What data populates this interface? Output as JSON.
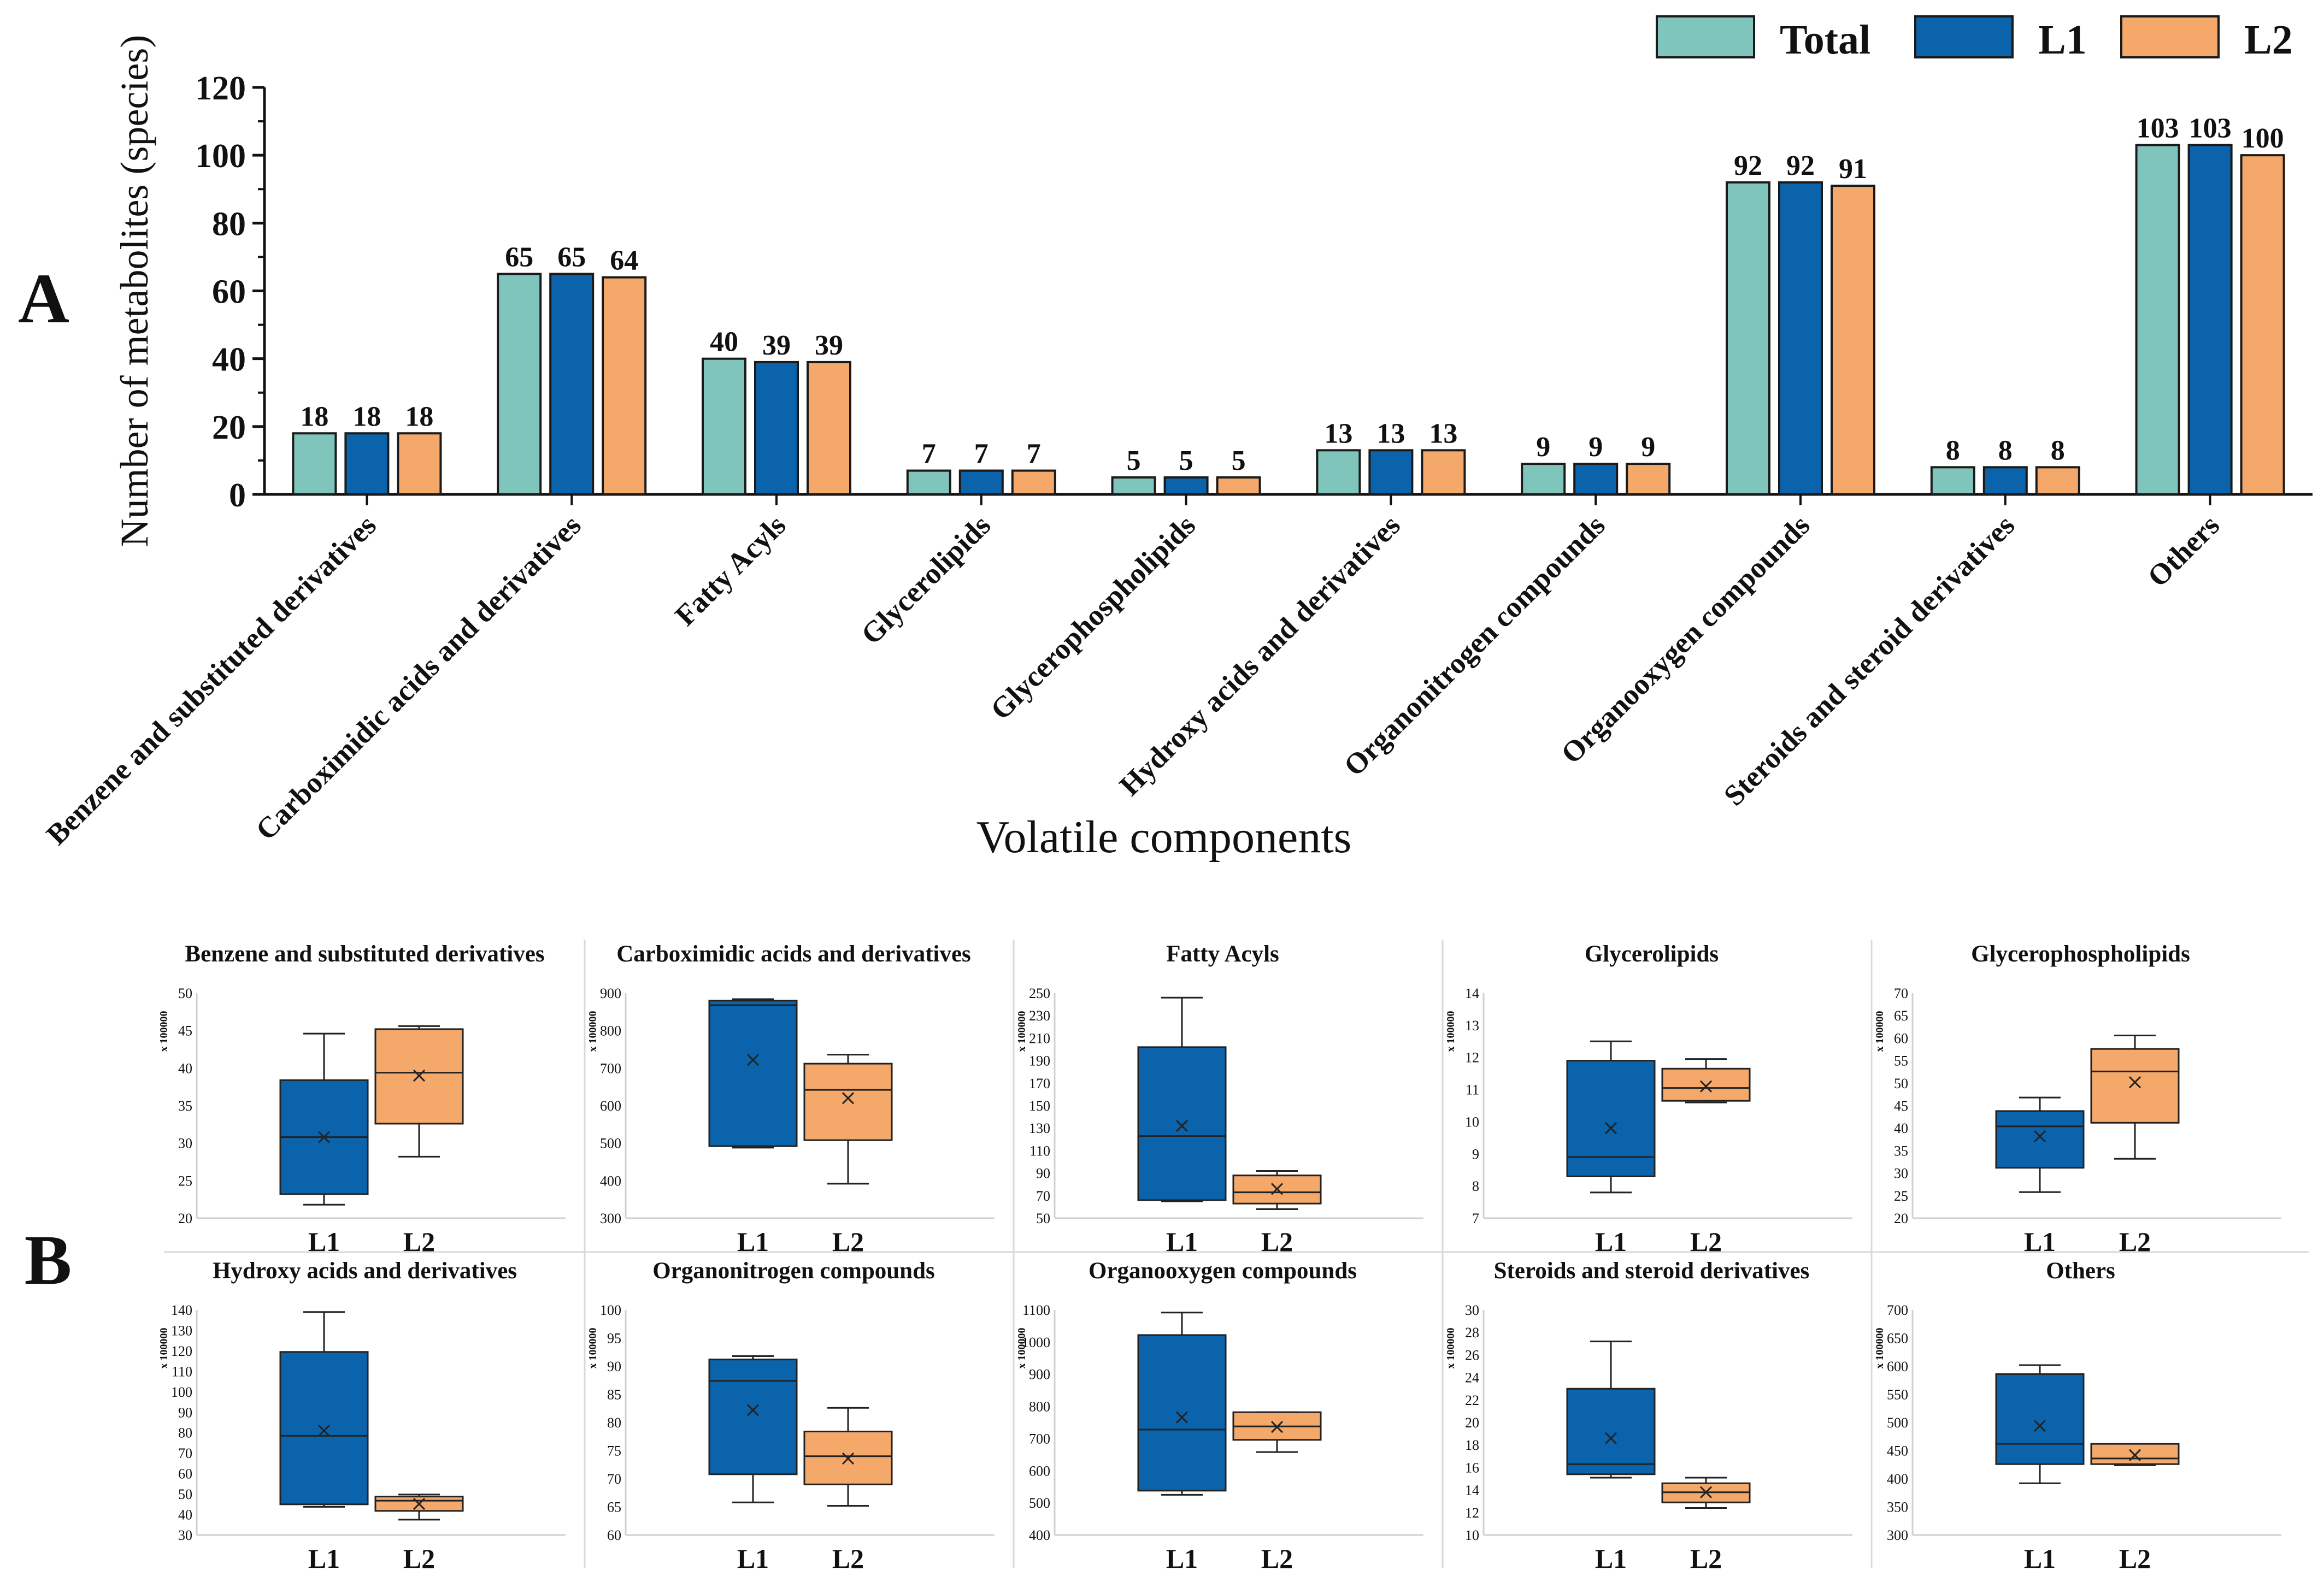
{
  "panel_labels": {
    "a": "A",
    "b": "B"
  },
  "legend": [
    "Total",
    "L1",
    "L2"
  ],
  "colors": {
    "Total": "#80c5bb",
    "L1": "#0b63ab",
    "L2": "#f4a86a",
    "outline": "#1a1a1a"
  },
  "chart_data": [
    {
      "type": "bar",
      "panel": "A",
      "title": "",
      "xlabel": "Volatile components",
      "ylabel": "Number of metabolites (species)",
      "ylim": [
        0,
        120
      ],
      "yticks": [
        0,
        20,
        40,
        60,
        80,
        100,
        120
      ],
      "categories": [
        "Benzene and substituted derivatives",
        "Carboximidic acids and derivatives",
        "Fatty Acyls",
        "Glycerolipids",
        "Glycerophospholipids",
        "Hydroxy acids and derivatives",
        "Organonitrogen compounds",
        "Organooxygen compounds",
        "Steroids and steroid derivatives",
        "Others"
      ],
      "series": [
        {
          "name": "Total",
          "values": [
            18,
            65,
            40,
            7,
            5,
            13,
            9,
            92,
            8,
            103
          ]
        },
        {
          "name": "L1",
          "values": [
            18,
            65,
            39,
            7,
            5,
            13,
            9,
            92,
            8,
            103
          ]
        },
        {
          "name": "L2",
          "values": [
            18,
            64,
            39,
            7,
            5,
            13,
            9,
            91,
            8,
            100
          ]
        }
      ],
      "legend_position": "top-right"
    },
    {
      "type": "box",
      "panel": "B",
      "scale_label": "x 100000",
      "groups": [
        "L1",
        "L2"
      ],
      "subplots": [
        {
          "title": "Benzene and substituted derivatives",
          "ylim": [
            20,
            50
          ],
          "yticks": [
            20,
            25,
            30,
            35,
            40,
            45,
            50
          ],
          "boxes": [
            {
              "min": 21.8,
              "q1": 23.2,
              "median": 30.8,
              "q3": 38.4,
              "max": 44.6,
              "mean": 30.8
            },
            {
              "min": 28.2,
              "q1": 32.6,
              "median": 39.4,
              "q3": 45.2,
              "max": 45.6,
              "mean": 39.0
            }
          ]
        },
        {
          "title": "Carboximidic acids and derivatives",
          "ylim": [
            300,
            900
          ],
          "yticks": [
            300,
            400,
            500,
            600,
            700,
            800,
            900
          ],
          "boxes": [
            {
              "min": 488,
              "q1": 492,
              "median": 868,
              "q3": 880,
              "max": 884,
              "mean": 722
            },
            {
              "min": 392,
              "q1": 508,
              "median": 642,
              "q3": 712,
              "max": 736,
              "mean": 620
            }
          ]
        },
        {
          "title": "Fatty Acyls",
          "ylim": [
            50,
            250
          ],
          "yticks": [
            50,
            70,
            90,
            110,
            130,
            150,
            170,
            190,
            210,
            230,
            250
          ],
          "boxes": [
            {
              "min": 65,
              "q1": 66,
              "median": 123,
              "q3": 202,
              "max": 246,
              "mean": 132
            },
            {
              "min": 58,
              "q1": 63,
              "median": 73,
              "q3": 88,
              "max": 92,
              "mean": 76
            }
          ]
        },
        {
          "title": "Glycerolipids",
          "ylim": [
            7,
            14
          ],
          "yticks": [
            7,
            8,
            9,
            10,
            11,
            12,
            13,
            14
          ],
          "boxes": [
            {
              "min": 7.8,
              "q1": 8.3,
              "median": 8.9,
              "q3": 11.9,
              "max": 12.5,
              "mean": 9.8
            },
            {
              "min": 10.6,
              "q1": 10.65,
              "median": 11.05,
              "q3": 11.65,
              "max": 11.95,
              "mean": 11.1
            }
          ]
        },
        {
          "title": "Glycerophospholipids",
          "ylim": [
            20,
            70
          ],
          "yticks": [
            20,
            25,
            30,
            35,
            40,
            45,
            50,
            55,
            60,
            65,
            70
          ],
          "boxes": [
            {
              "min": 25.8,
              "q1": 31.2,
              "median": 40.4,
              "q3": 43.8,
              "max": 46.8,
              "mean": 38.2
            },
            {
              "min": 33.2,
              "q1": 41.2,
              "median": 52.6,
              "q3": 57.6,
              "max": 60.6,
              "mean": 50.2
            }
          ]
        },
        {
          "title": "Hydroxy acids and derivatives",
          "ylim": [
            30,
            140
          ],
          "yticks": [
            30,
            40,
            50,
            60,
            70,
            80,
            90,
            100,
            110,
            120,
            130,
            140
          ],
          "boxes": [
            {
              "min": 43.8,
              "q1": 45,
              "median": 78.5,
              "q3": 119.5,
              "max": 139,
              "mean": 81
            },
            {
              "min": 37.5,
              "q1": 41.8,
              "median": 46.8,
              "q3": 48.8,
              "max": 49.8,
              "mean": 45.2
            }
          ]
        },
        {
          "title": "Organonitrogen compounds",
          "ylim": [
            60,
            100
          ],
          "yticks": [
            60,
            65,
            70,
            75,
            80,
            85,
            90,
            95,
            100
          ],
          "boxes": [
            {
              "min": 65.8,
              "q1": 70.8,
              "median": 87.4,
              "q3": 91.2,
              "max": 91.8,
              "mean": 82.2
            },
            {
              "min": 65.2,
              "q1": 69,
              "median": 74,
              "q3": 78.4,
              "max": 82.6,
              "mean": 73.6
            }
          ]
        },
        {
          "title": "Organooxygen compounds",
          "ylim": [
            400,
            1100
          ],
          "yticks": [
            400,
            500,
            600,
            700,
            800,
            900,
            1000,
            1100
          ],
          "boxes": [
            {
              "min": 525,
              "q1": 538,
              "median": 728,
              "q3": 1022,
              "max": 1092,
              "mean": 766
            },
            {
              "min": 658,
              "q1": 696,
              "median": 738,
              "q3": 782,
              "max": 782,
              "mean": 736
            }
          ]
        },
        {
          "title": "Steroids and steroid derivatives",
          "ylim": [
            10,
            30
          ],
          "yticks": [
            10,
            12,
            14,
            16,
            18,
            20,
            22,
            24,
            26,
            28,
            30
          ],
          "boxes": [
            {
              "min": 15.1,
              "q1": 15.4,
              "median": 16.3,
              "q3": 23,
              "max": 27.2,
              "mean": 18.6
            },
            {
              "min": 12.4,
              "q1": 12.9,
              "median": 13.8,
              "q3": 14.6,
              "max": 15.1,
              "mean": 13.8
            }
          ]
        },
        {
          "title": "Others",
          "ylim": [
            300,
            700
          ],
          "yticks": [
            300,
            350,
            400,
            450,
            500,
            550,
            600,
            650,
            700
          ],
          "boxes": [
            {
              "min": 392,
              "q1": 426,
              "median": 462,
              "q3": 586,
              "max": 602,
              "mean": 494
            },
            {
              "min": 424,
              "q1": 426,
              "median": 436,
              "q3": 462,
              "max": 462,
              "mean": 442
            }
          ]
        }
      ]
    }
  ]
}
